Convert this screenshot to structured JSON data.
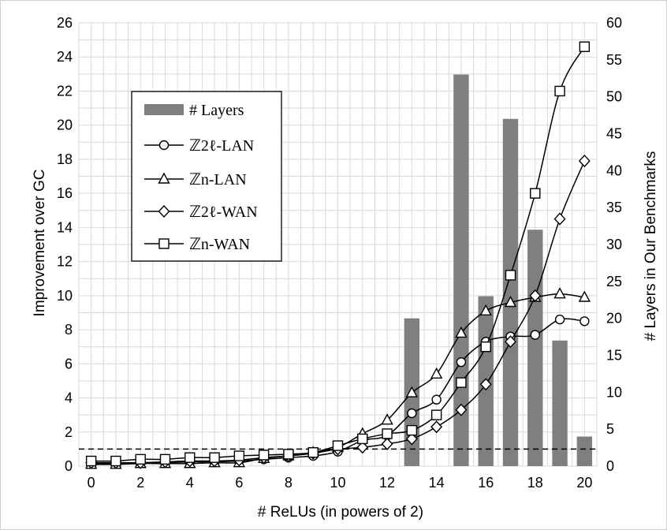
{
  "chart_data": {
    "type": "line",
    "xlabel": "# ReLUs (in powers of 2)",
    "ylabel": "Improvement over GC",
    "y2label": "# Layers in Our Benchmarks",
    "x_ticks": [
      "0",
      "2",
      "4",
      "6",
      "8",
      "10",
      "12",
      "14",
      "16",
      "18",
      "20"
    ],
    "y_ticks": [
      "0",
      "2",
      "4",
      "6",
      "8",
      "10",
      "12",
      "14",
      "16",
      "18",
      "20",
      "22",
      "24",
      "26"
    ],
    "y2_ticks": [
      "0",
      "5",
      "10",
      "15",
      "20",
      "25",
      "30",
      "35",
      "40",
      "45",
      "50",
      "55",
      "60"
    ],
    "xlim": [
      -0.5,
      20.5
    ],
    "ylim": [
      0,
      26
    ],
    "y2lim": [
      0,
      60
    ],
    "grid": true,
    "legend_position": "upper-left",
    "reference_line": {
      "y": 1,
      "style": "dashed"
    },
    "bars": {
      "name": "# Layers",
      "axis": "right",
      "color": "#7f7f7f",
      "x": [
        13,
        15,
        16,
        17,
        18,
        19,
        20
      ],
      "values": [
        20,
        53,
        23,
        47,
        32,
        17,
        4
      ]
    },
    "series": [
      {
        "name": "ℤ2ℓ-LAN",
        "marker": "circle",
        "x": [
          0,
          1,
          2,
          3,
          4,
          5,
          6,
          7,
          8,
          9,
          10,
          11,
          12,
          13,
          14,
          15,
          16,
          17,
          18,
          19,
          20
        ],
        "values": [
          0.15,
          0.15,
          0.2,
          0.2,
          0.25,
          0.25,
          0.3,
          0.4,
          0.5,
          0.6,
          0.85,
          1.5,
          1.8,
          3.1,
          3.9,
          6.1,
          7.3,
          7.6,
          7.7,
          8.6,
          8.5
        ]
      },
      {
        "name": "ℤn-LAN",
        "marker": "triangle",
        "x": [
          0,
          1,
          2,
          3,
          4,
          5,
          6,
          7,
          8,
          9,
          10,
          11,
          12,
          13,
          14,
          15,
          16,
          17,
          18,
          19,
          20
        ],
        "values": [
          0.1,
          0.1,
          0.15,
          0.15,
          0.15,
          0.2,
          0.2,
          0.45,
          0.6,
          0.8,
          1.1,
          1.9,
          2.7,
          4.3,
          5.4,
          7.8,
          9.1,
          9.6,
          9.9,
          10.1,
          9.9
        ]
      },
      {
        "name": "ℤ2ℓ-WAN",
        "marker": "diamond",
        "x": [
          0,
          1,
          2,
          3,
          4,
          5,
          6,
          7,
          8,
          9,
          10,
          11,
          12,
          13,
          14,
          15,
          16,
          17,
          18,
          19,
          20
        ],
        "values": [
          0.2,
          0.2,
          0.2,
          0.25,
          0.3,
          0.3,
          0.35,
          0.5,
          0.6,
          0.75,
          1.0,
          1.1,
          1.3,
          1.6,
          2.3,
          3.3,
          4.8,
          7.3,
          10.0,
          14.5,
          17.9
        ]
      },
      {
        "name": "ℤn-WAN",
        "marker": "square",
        "x": [
          0,
          1,
          2,
          3,
          4,
          5,
          6,
          7,
          8,
          9,
          10,
          11,
          12,
          13,
          14,
          15,
          16,
          17,
          18,
          19,
          20
        ],
        "values": [
          0.3,
          0.3,
          0.4,
          0.4,
          0.5,
          0.5,
          0.6,
          0.65,
          0.7,
          0.8,
          1.2,
          1.6,
          1.9,
          2.1,
          3.0,
          4.9,
          7.0,
          11.2,
          16.0,
          22.0,
          24.6
        ]
      }
    ]
  }
}
